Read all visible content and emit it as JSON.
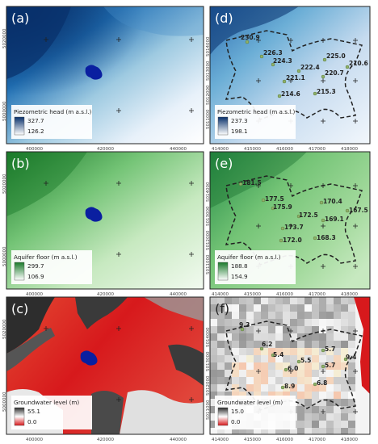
{
  "panels": {
    "a": {
      "label": "(a)",
      "x_ticks": [
        "400000",
        "420000",
        "440000"
      ],
      "y_ticks": [
        "5020000",
        "5000000"
      ],
      "legend_title": "Piezometric head (m a.s.l.)",
      "legend_max": "327.7",
      "legend_min": "126.2",
      "colors": [
        "#0a3a8a",
        "#ffffff"
      ]
    },
    "b": {
      "label": "(b)",
      "x_ticks": [
        "400000",
        "420000",
        "440000"
      ],
      "y_ticks": [
        "5020000",
        "5000000"
      ],
      "legend_title": "Aquifer floor (m a.s.l.)",
      "legend_max": "299.7",
      "legend_min": "106.9",
      "colors": [
        "#1f7a2c",
        "#ffffff"
      ]
    },
    "c": {
      "label": "(c)",
      "x_ticks": [
        "400000",
        "420000",
        "440000"
      ],
      "y_ticks": [
        "5020000",
        "5000000"
      ],
      "legend_title": "Groundwater level (m)",
      "legend_max": "55.1",
      "legend_min": "0.0",
      "colors": [
        "#2b2b2b",
        "#d7191c"
      ]
    },
    "d": {
      "label": "(d)",
      "x_ticks": [
        "414000",
        "415000",
        "416000",
        "417000",
        "418000"
      ],
      "y_ticks": [
        "5014000",
        "5013000",
        "5012000",
        "5011000"
      ],
      "legend_title": "Piezometric head (m a.s.l.)",
      "legend_max": "237.3",
      "legend_min": "198.1",
      "colors": [
        "#0a3a8a",
        "#ffffff"
      ],
      "wells": [
        "230.9",
        "226.3",
        "224.3",
        "225.0",
        "210.6",
        "222.4",
        "220.7",
        "221.1",
        "214.6",
        "215.3"
      ]
    },
    "e": {
      "label": "(e)",
      "x_ticks": [
        "414000",
        "415000",
        "416000",
        "417000",
        "418000"
      ],
      "y_ticks": [
        "5014000",
        "5013000",
        "5012000",
        "5011000"
      ],
      "legend_title": "Aquifer floor (m a.s.l.)",
      "legend_max": "188.8",
      "legend_min": "154.9",
      "colors": [
        "#1f7a2c",
        "#ffffff"
      ],
      "wells": [
        "181.5",
        "177.5",
        "175.9",
        "170.4",
        "167.5",
        "172.5",
        "169.1",
        "173.7",
        "172.0",
        "168.3"
      ]
    },
    "f": {
      "label": "(f)",
      "x_ticks": [
        "414000",
        "415000",
        "416000",
        "417000",
        "418000"
      ],
      "y_ticks": [
        "5014000",
        "5013000",
        "5012000",
        "5011000"
      ],
      "legend_title": "Groundwater level (m)",
      "legend_max": "15.0",
      "legend_min": "0.0",
      "colors": [
        "#2b2b2b",
        "#d7191c"
      ],
      "wells": [
        "9.3",
        "6.2",
        "5.4",
        "5.5",
        "5.7",
        "9.4",
        "6.0",
        "5.7",
        "8.9",
        "6.8"
      ]
    }
  }
}
